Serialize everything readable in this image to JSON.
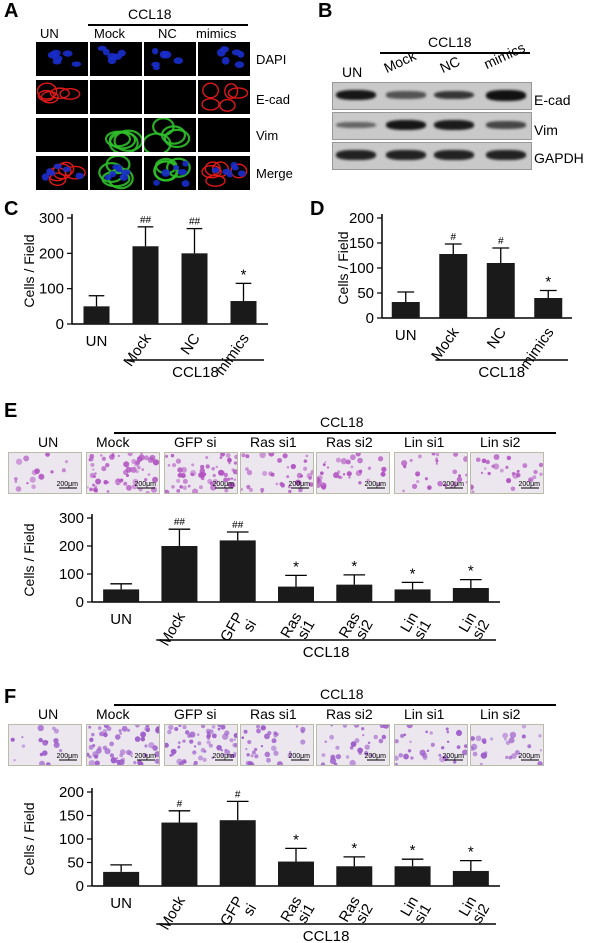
{
  "panel_a": {
    "letter": "A",
    "ccl18": "CCL18",
    "columns": [
      "UN",
      "Mock",
      "NC",
      "mimics"
    ],
    "rows": [
      "DAPI",
      "E-cad",
      "Vim",
      "Merge"
    ],
    "colors": {
      "dapi": "#1a2ecc",
      "ecad": "#e01818",
      "vim": "#2fbf2a"
    }
  },
  "panel_b": {
    "letter": "B",
    "ccl18": "CCL18",
    "columns": [
      "UN",
      "Mock",
      "NC",
      "mimics"
    ],
    "rows": [
      "E-cad",
      "Vim",
      "GAPDH"
    ],
    "band_intensity": {
      "E-cad": [
        0.95,
        0.45,
        0.7,
        1.0
      ],
      "Vim": [
        0.3,
        0.95,
        0.9,
        0.55
      ],
      "GAPDH": [
        0.85,
        0.85,
        0.85,
        0.85
      ]
    }
  },
  "panel_e_images": {
    "letter": "E",
    "ccl18": "CCL18",
    "labels": [
      "UN",
      "Mock",
      "GFP si",
      "Ras si1",
      "Ras si2",
      "Lin si1",
      "Lin si2"
    ],
    "scale": "200μm",
    "stain_color": "#b050c0",
    "density": [
      0.15,
      0.95,
      0.9,
      0.5,
      0.45,
      0.35,
      0.35
    ]
  },
  "panel_f_images": {
    "letter": "F",
    "ccl18": "CCL18",
    "labels": [
      "UN",
      "Mock",
      "GFP si",
      "Ras si1",
      "Ras si2",
      "Lin si1",
      "Lin si2"
    ],
    "scale": "200μm",
    "stain_color": "#9a58c8",
    "density": [
      0.2,
      0.85,
      0.9,
      0.45,
      0.4,
      0.4,
      0.35
    ]
  },
  "chart_data": [
    {
      "panel": "C",
      "type": "bar",
      "categories": [
        "UN",
        "Mock",
        "NC",
        "mimics"
      ],
      "values": [
        50,
        220,
        200,
        65
      ],
      "errors": [
        30,
        55,
        70,
        50
      ],
      "annotations": [
        "",
        "##",
        "##",
        "*"
      ],
      "ylabel": "Cells / Field",
      "ylim": [
        0,
        300
      ],
      "yticks": [
        0,
        100,
        200,
        300
      ],
      "group_label": "CCL18"
    },
    {
      "panel": "D",
      "type": "bar",
      "categories": [
        "UN",
        "Mock",
        "NC",
        "mimics"
      ],
      "values": [
        32,
        128,
        110,
        40
      ],
      "errors": [
        20,
        20,
        30,
        15
      ],
      "annotations": [
        "",
        "#",
        "#",
        "*"
      ],
      "ylabel": "Cells / Field",
      "ylim": [
        0,
        200
      ],
      "yticks": [
        0,
        50,
        100,
        150,
        200
      ],
      "group_label": "CCL18"
    },
    {
      "panel": "E",
      "type": "bar",
      "categories": [
        "UN",
        "Mock",
        "GFP si",
        "Ras si1",
        "Ras si2",
        "Lin si1",
        "Lin si2"
      ],
      "values": [
        45,
        200,
        220,
        55,
        62,
        45,
        50
      ],
      "errors": [
        20,
        60,
        30,
        40,
        35,
        25,
        30
      ],
      "annotations": [
        "",
        "##",
        "##",
        "*",
        "*",
        "*",
        "*"
      ],
      "ylabel": "Cells / Field",
      "ylim": [
        0,
        300
      ],
      "yticks": [
        0,
        100,
        200,
        300
      ],
      "group_label": "CCL18"
    },
    {
      "panel": "F",
      "type": "bar",
      "categories": [
        "UN",
        "Mock",
        "GFP si",
        "Ras si1",
        "Ras si2",
        "Lin si1",
        "Lin si2"
      ],
      "values": [
        30,
        135,
        140,
        52,
        42,
        42,
        32
      ],
      "errors": [
        15,
        25,
        40,
        28,
        20,
        15,
        22
      ],
      "annotations": [
        "",
        "#",
        "#",
        "*",
        "*",
        "*",
        "*"
      ],
      "ylabel": "Cells / Field",
      "ylim": [
        0,
        200
      ],
      "yticks": [
        0,
        50,
        100,
        150,
        200
      ],
      "group_label": "CCL18"
    }
  ]
}
